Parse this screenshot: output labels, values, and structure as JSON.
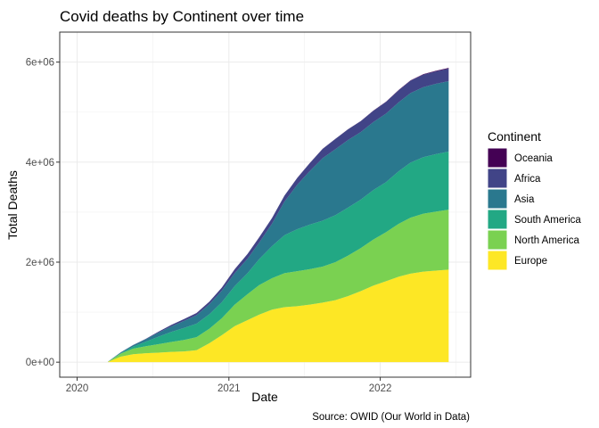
{
  "chart_data": {
    "type": "area",
    "stacked": true,
    "title": "Covid deaths by Continent over time",
    "xlabel": "Date",
    "ylabel": "Total Deaths",
    "caption": "Source: OWID (Our World in Data)",
    "legend_title": "Continent",
    "legend_position": "right",
    "grid": true,
    "xlim": [
      "2019-11-20",
      "2022-08-07"
    ],
    "ylim": [
      -300000,
      6600000
    ],
    "x_ticks": [
      {
        "date": "2020-01-01",
        "label": "2020"
      },
      {
        "date": "2021-01-01",
        "label": "2021"
      },
      {
        "date": "2022-01-01",
        "label": "2022"
      }
    ],
    "y_ticks": [
      {
        "value": 0,
        "label": "0e+00"
      },
      {
        "value": 2000000,
        "label": "2e+06"
      },
      {
        "value": 4000000,
        "label": "4e+06"
      },
      {
        "value": 6000000,
        "label": "6e+06"
      }
    ],
    "x": [
      "2020-03-15",
      "2020-04-15",
      "2020-05-15",
      "2020-06-15",
      "2020-07-15",
      "2020-08-15",
      "2020-09-15",
      "2020-10-15",
      "2020-11-15",
      "2020-12-15",
      "2021-01-15",
      "2021-02-15",
      "2021-03-15",
      "2021-04-15",
      "2021-05-15",
      "2021-06-15",
      "2021-07-15",
      "2021-08-15",
      "2021-09-15",
      "2021-10-15",
      "2021-11-15",
      "2021-12-15",
      "2022-01-15",
      "2022-02-15",
      "2022-03-15",
      "2022-04-15",
      "2022-05-15",
      "2022-06-15"
    ],
    "series": [
      {
        "name": "Europe",
        "color": "#FDE725",
        "values": [
          5000,
          110000,
          160000,
          180000,
          190000,
          205000,
          215000,
          240000,
          380000,
          540000,
          720000,
          840000,
          950000,
          1050000,
          1100000,
          1120000,
          1150000,
          1190000,
          1240000,
          1320000,
          1420000,
          1530000,
          1620000,
          1710000,
          1770000,
          1810000,
          1830000,
          1850000
        ]
      },
      {
        "name": "North America",
        "color": "#7AD151",
        "values": [
          2000,
          60000,
          110000,
          140000,
          170000,
          200000,
          230000,
          260000,
          290000,
          340000,
          430000,
          520000,
          590000,
          630000,
          680000,
          700000,
          710000,
          720000,
          760000,
          810000,
          860000,
          920000,
          980000,
          1060000,
          1120000,
          1160000,
          1180000,
          1200000
        ]
      },
      {
        "name": "South America",
        "color": "#22A884",
        "values": [
          500,
          10000,
          40000,
          90000,
          150000,
          200000,
          240000,
          270000,
          290000,
          320000,
          370000,
          420000,
          520000,
          640000,
          760000,
          840000,
          890000,
          920000,
          940000,
          960000,
          970000,
          990000,
          1000000,
          1050000,
          1100000,
          1130000,
          1150000,
          1160000
        ]
      },
      {
        "name": "Asia",
        "color": "#2A788E",
        "values": [
          3000,
          15000,
          30000,
          50000,
          80000,
          110000,
          140000,
          170000,
          200000,
          230000,
          260000,
          290000,
          330000,
          450000,
          670000,
          890000,
          1070000,
          1250000,
          1320000,
          1350000,
          1350000,
          1360000,
          1370000,
          1380000,
          1390000,
          1400000,
          1405000,
          1410000
        ]
      },
      {
        "name": "Africa",
        "color": "#414487",
        "values": [
          100,
          1500,
          3500,
          8000,
          20000,
          30000,
          38000,
          42000,
          50000,
          62000,
          78000,
          95000,
          105000,
          112000,
          120000,
          135000,
          160000,
          185000,
          205000,
          215000,
          220000,
          225000,
          235000,
          242000,
          248000,
          250000,
          251000,
          252000
        ]
      },
      {
        "name": "Oceania",
        "color": "#440154",
        "values": [
          0,
          100,
          120,
          130,
          150,
          900,
          930,
          950,
          950,
          960,
          1000,
          1000,
          1010,
          1050,
          1060,
          1080,
          1100,
          1200,
          1400,
          1800,
          2500,
          3000,
          3800,
          5500,
          7500,
          9500,
          10500,
          11500
        ]
      }
    ],
    "legend_order": [
      "Oceania",
      "Africa",
      "Asia",
      "South America",
      "North America",
      "Europe"
    ]
  }
}
